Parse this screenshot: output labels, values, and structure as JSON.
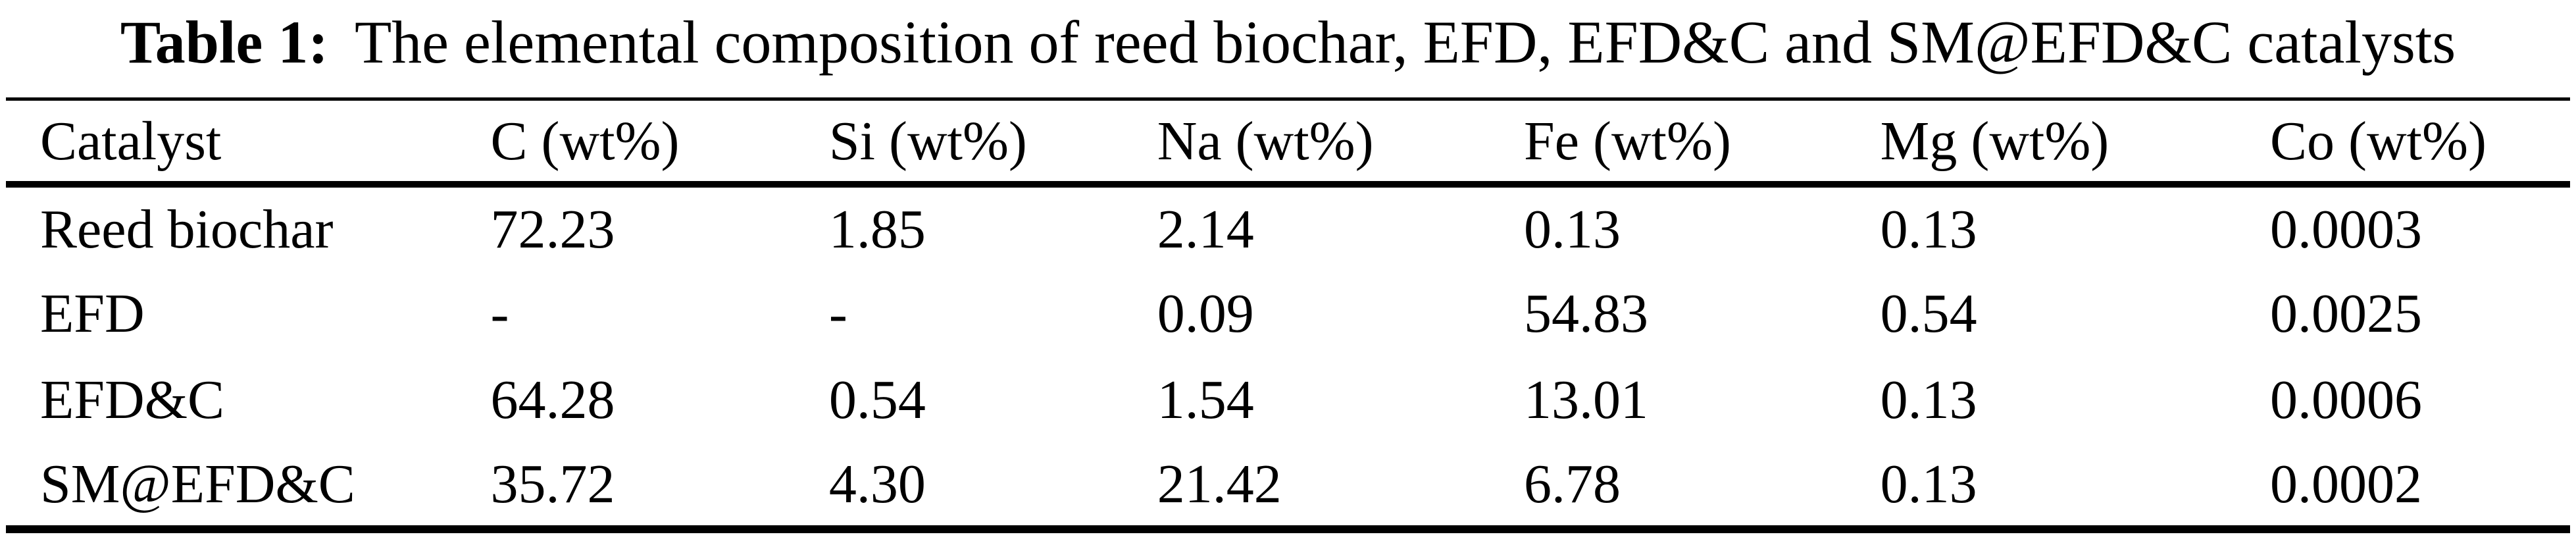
{
  "colors": {
    "background": "#ffffff",
    "text": "#000000",
    "rule": "#000000"
  },
  "caption": {
    "label": "Table 1:",
    "text": "The elemental composition of reed biochar, EFD, EFD&C and SM@EFD&C catalysts"
  },
  "table": {
    "columns": [
      "Catalyst",
      "C (wt%)",
      "Si (wt%)",
      "Na (wt%)",
      "Fe (wt%)",
      "Mg (wt%)",
      "Co (wt%)"
    ],
    "rows": [
      [
        "Reed biochar",
        "72.23",
        "1.85",
        "2.14",
        "0.13",
        "0.13",
        "0.0003"
      ],
      [
        "EFD",
        "-",
        "-",
        "0.09",
        "54.83",
        "0.54",
        "0.0025"
      ],
      [
        "EFD&C",
        "64.28",
        "0.54",
        "1.54",
        "13.01",
        "0.13",
        "0.0006"
      ],
      [
        "SM@EFD&C",
        "35.72",
        "4.30",
        "21.42",
        "6.78",
        "0.13",
        "0.0002"
      ]
    ]
  }
}
